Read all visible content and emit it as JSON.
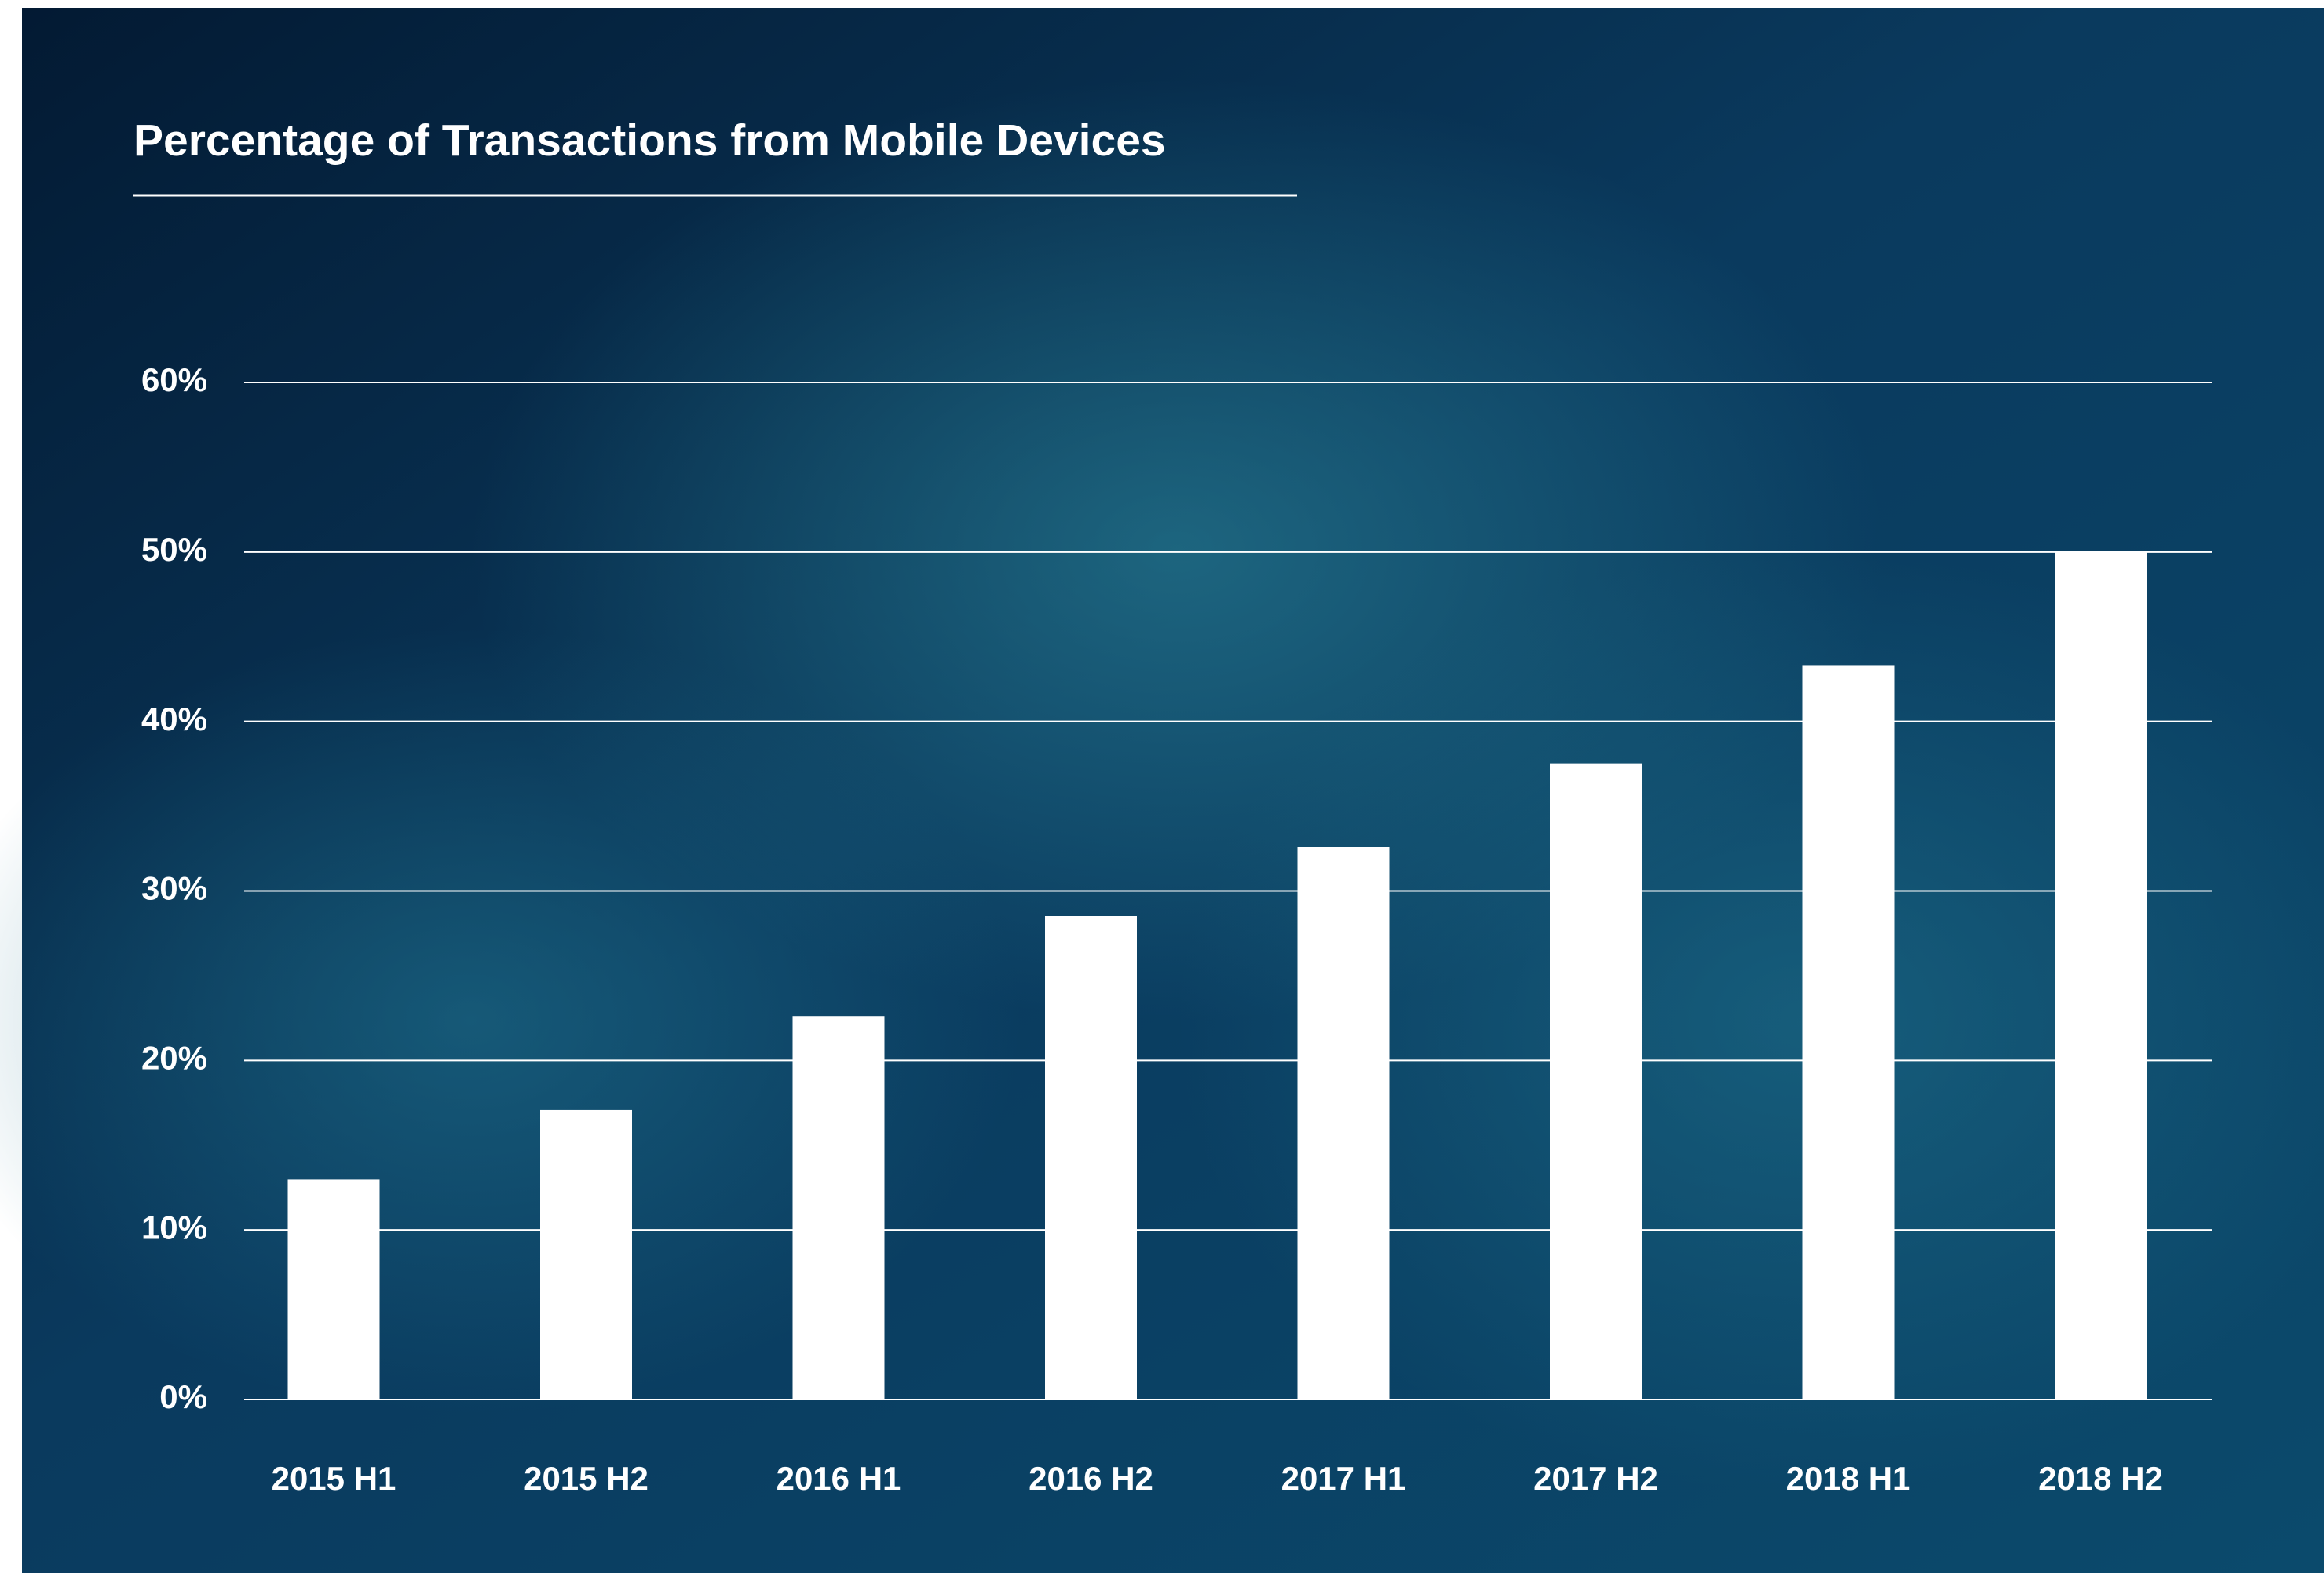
{
  "chart_data": {
    "type": "bar",
    "title": "Percentage of Transactions from Mobile Devices",
    "categories": [
      "2015 H1",
      "2015 H2",
      "2016 H1",
      "2016 H2",
      "2017 H1",
      "2017 H2",
      "2018 H1",
      "2018 H2"
    ],
    "values": [
      13,
      17.1,
      22.6,
      28.5,
      32.6,
      37.5,
      43.3,
      50
    ],
    "color": "#ffffff",
    "ylim": [
      0,
      60
    ],
    "yticks": [
      {
        "value": 0,
        "label": "0%"
      },
      {
        "value": 10,
        "label": "10%"
      },
      {
        "value": 20,
        "label": "20%"
      },
      {
        "value": 30,
        "label": "30%"
      },
      {
        "value": 40,
        "label": "40%"
      },
      {
        "value": 50,
        "label": "50%"
      },
      {
        "value": 60,
        "label": "60%"
      }
    ],
    "grid": true
  }
}
